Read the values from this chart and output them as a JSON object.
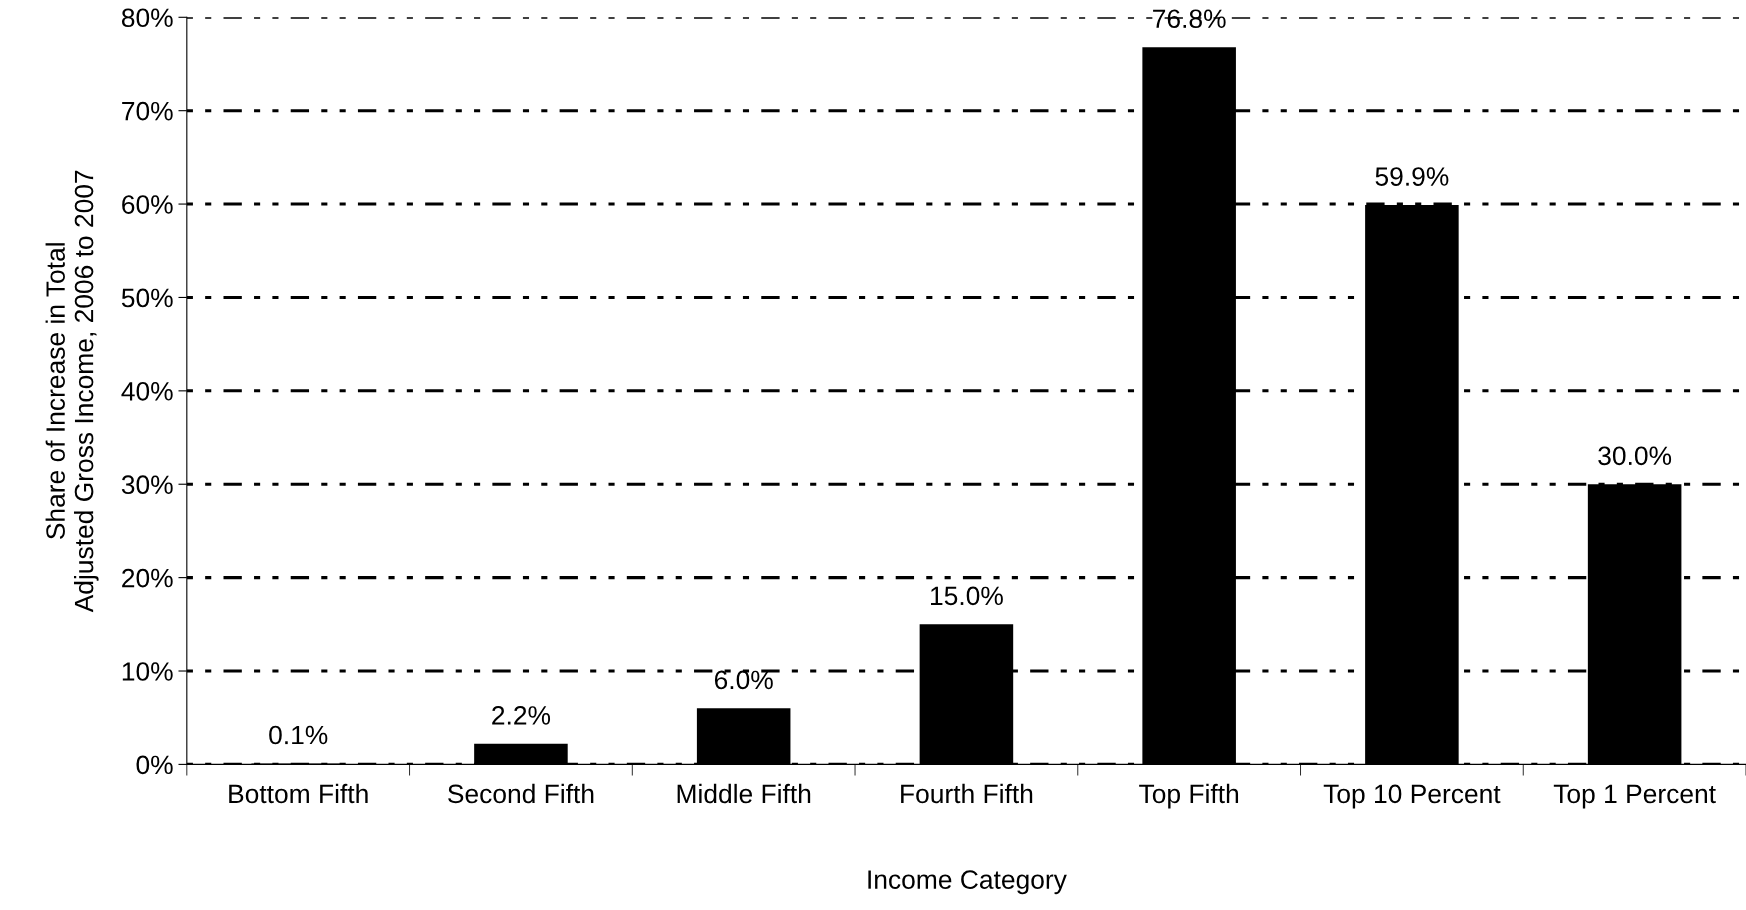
{
  "chart_data": {
    "type": "bar",
    "xlabel": "Income Category",
    "ylabel": "Share of Increase in Total\nAdjusted Gross Income, 2006 to 2007",
    "categories": [
      "Bottom Fifth",
      "Second Fifth",
      "Middle Fifth",
      "Fourth Fifth",
      "Top Fifth",
      "Top 10 Percent",
      "Top 1 Percent"
    ],
    "values": [
      0.1,
      2.2,
      6.0,
      15.0,
      76.8,
      59.9,
      30.0
    ],
    "value_labels": [
      "0.1%",
      "2.2%",
      "6.0%",
      "15.0%",
      "76.8%",
      "59.9%",
      "30.0%"
    ],
    "color": "#000000",
    "ylim": [
      0,
      80
    ],
    "yticks": [
      {
        "value": 0,
        "label": "0%"
      },
      {
        "value": 10,
        "label": "10%"
      },
      {
        "value": 20,
        "label": "20%"
      },
      {
        "value": 30,
        "label": "30%"
      },
      {
        "value": 40,
        "label": "40%"
      },
      {
        "value": 50,
        "label": "50%"
      },
      {
        "value": 60,
        "label": "60%"
      },
      {
        "value": 70,
        "label": "70%"
      },
      {
        "value": 80,
        "label": "80%"
      }
    ],
    "grid": "y",
    "legend": false
  }
}
